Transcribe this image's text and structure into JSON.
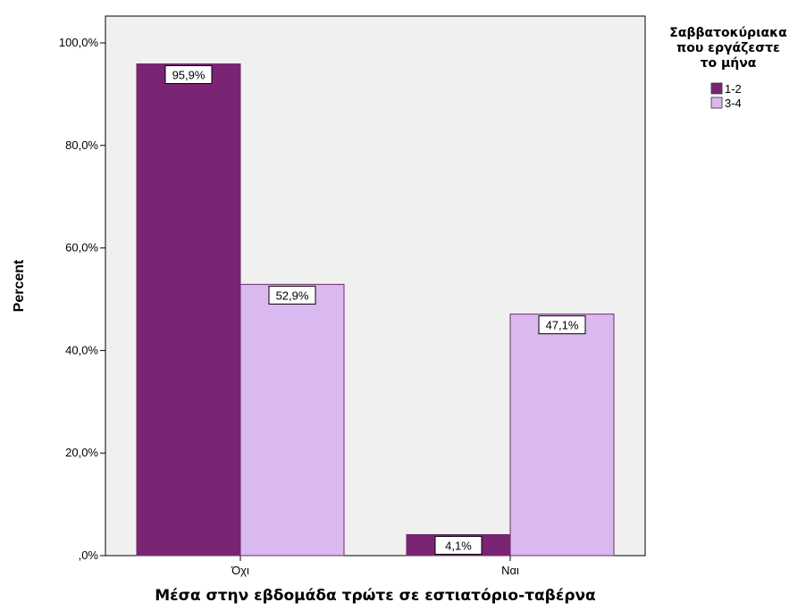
{
  "chart_data": {
    "type": "bar",
    "categories": [
      "Όχι",
      "Ναι"
    ],
    "series": [
      {
        "name": "1-2",
        "values": [
          95.9,
          4.1
        ],
        "labels": [
          "95,9%",
          "4,1%"
        ],
        "color": "#7a2574"
      },
      {
        "name": "3-4",
        "values": [
          52.9,
          47.1
        ],
        "labels": [
          "52,9%",
          "47,1%"
        ],
        "color": "#dab8f0"
      }
    ],
    "xlabel": "Μέσα στην εβδομάδα τρώτε σε εστιατόριο-ταβέρνα",
    "ylabel": "Percent",
    "ylim": [
      0,
      100
    ],
    "yticks": [
      0,
      20,
      40,
      60,
      80,
      100
    ],
    "ytick_labels": [
      ",0%",
      "20,0%",
      "40,0%",
      "60,0%",
      "80,0%",
      "100,0%"
    ],
    "legend": {
      "title_lines": [
        "Σαββατοκύριακα",
        "που εργάζεστε",
        "το μήνα"
      ],
      "position": "top-right"
    },
    "plot_background": "#f0f0f0",
    "bar_edge_color": "#6e2a6a",
    "grid": false
  }
}
